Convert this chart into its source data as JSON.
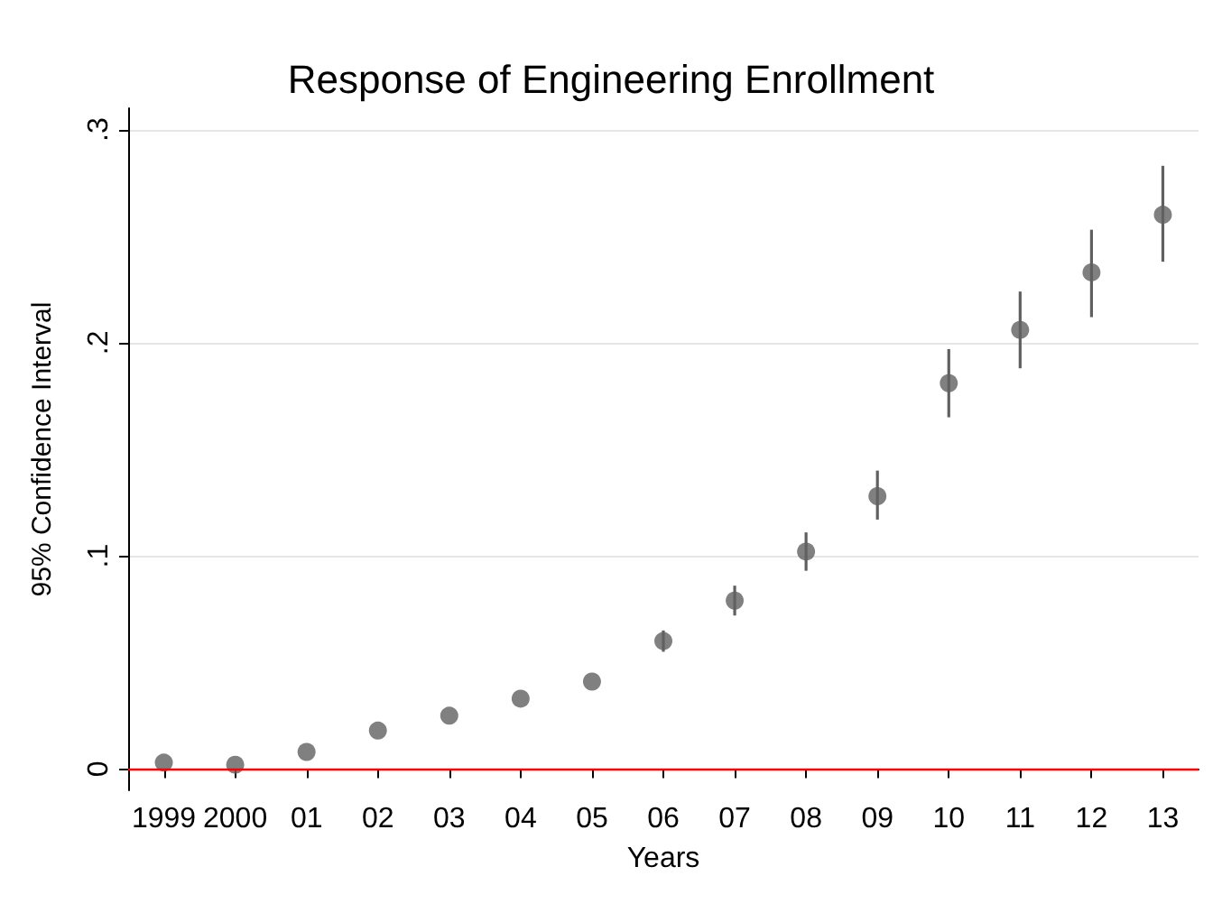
{
  "chart_data": {
    "type": "scatter",
    "title": "Response of Engineering Enrollment",
    "xlabel": "Years",
    "ylabel": "95% Confidence Interval",
    "categories": [
      "1999",
      "2000",
      "01",
      "02",
      "03",
      "04",
      "05",
      "06",
      "07",
      "08",
      "09",
      "10",
      "11",
      "12",
      "13"
    ],
    "values": [
      0.003,
      0.002,
      0.008,
      0.018,
      0.025,
      0.033,
      0.041,
      0.06,
      0.079,
      0.102,
      0.128,
      0.181,
      0.206,
      0.233,
      0.26
    ],
    "errors": [
      null,
      null,
      null,
      null,
      null,
      null,
      null,
      [
        0.055,
        0.065
      ],
      [
        0.072,
        0.086
      ],
      [
        0.093,
        0.111
      ],
      [
        0.117,
        0.14
      ],
      [
        0.165,
        0.197
      ],
      [
        0.188,
        0.224
      ],
      [
        0.212,
        0.253
      ],
      [
        0.238,
        0.283
      ]
    ],
    "color": "#606060",
    "marker": "circle",
    "ylim": [
      -0.01,
      0.31
    ],
    "yticks": [
      {
        "value": 0,
        "label": "0"
      },
      {
        "value": 0.1,
        "label": ".1"
      },
      {
        "value": 0.2,
        "label": ".2"
      },
      {
        "value": 0.3,
        "label": ".3"
      }
    ],
    "grid": "y",
    "ref_lines": [
      {
        "axis": "y",
        "value": 0,
        "label": null,
        "color": "#ff0000"
      }
    ]
  }
}
